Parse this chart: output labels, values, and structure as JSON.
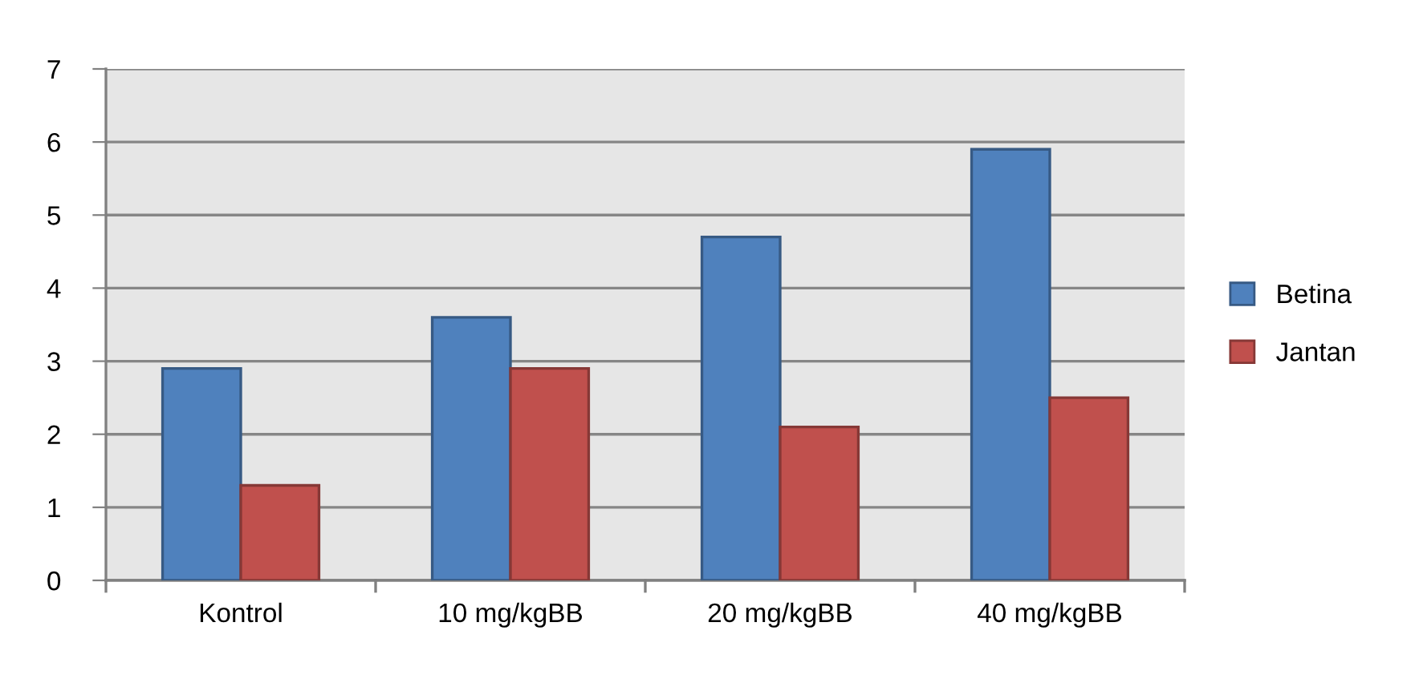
{
  "chart_data": {
    "type": "bar",
    "categories": [
      "Kontrol",
      "10 mg/kgBB",
      "20 mg/kgBB",
      "40 mg/kgBB"
    ],
    "series": [
      {
        "name": "Betina",
        "color": "#4f81bd",
        "values": [
          2.9,
          3.6,
          4.7,
          5.9
        ]
      },
      {
        "name": "Jantan",
        "color": "#c0504d",
        "values": [
          1.3,
          2.9,
          2.1,
          2.5
        ]
      }
    ],
    "ylim": [
      0,
      7
    ],
    "yticks": [
      0,
      1,
      2,
      3,
      4,
      5,
      6,
      7
    ],
    "grid": "y",
    "legend": "right"
  }
}
